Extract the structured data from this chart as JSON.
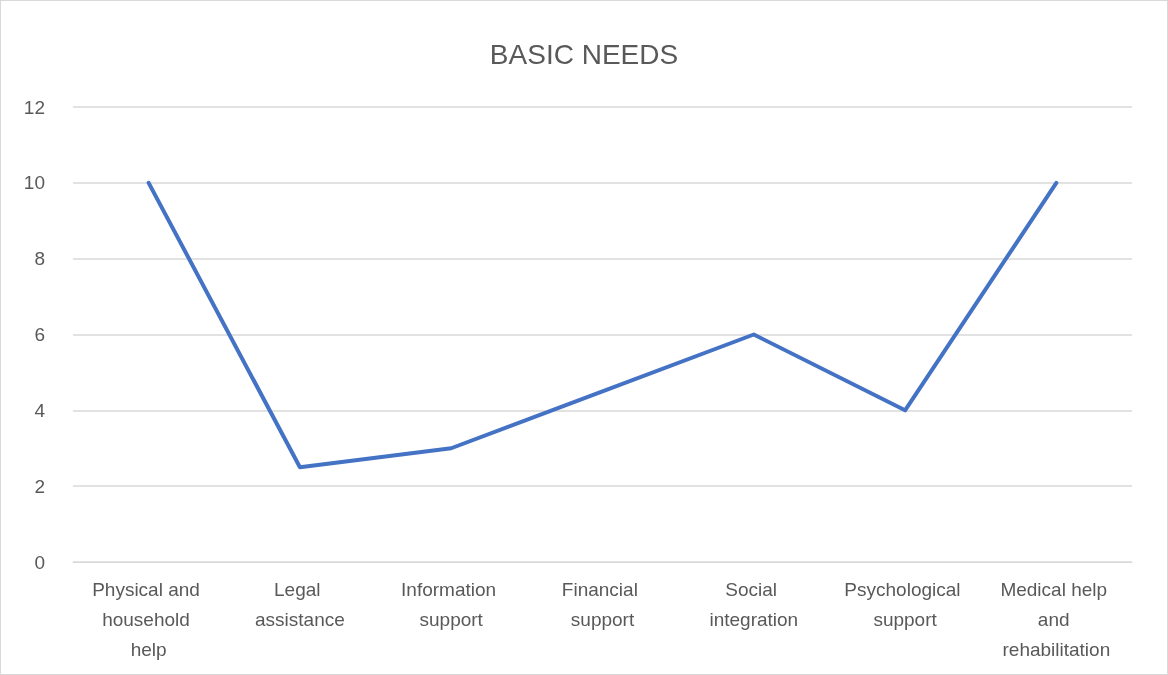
{
  "chart_data": {
    "type": "line",
    "title": "BASIC NEEDS",
    "categories": [
      "Physical and household help",
      "Legal assistance",
      "Information support",
      "Financial support",
      "Social integration",
      "Psychological support",
      "Medical help and rehabilitation"
    ],
    "series": [
      {
        "color": "#4472c4",
        "values": [
          10,
          2.5,
          3,
          4.5,
          6,
          4,
          10
        ]
      }
    ],
    "ylim": [
      0,
      12
    ],
    "yticks": [
      0,
      2,
      4,
      6,
      8,
      10,
      12
    ],
    "grid": "y",
    "marker": "none",
    "line_style": "solid"
  }
}
